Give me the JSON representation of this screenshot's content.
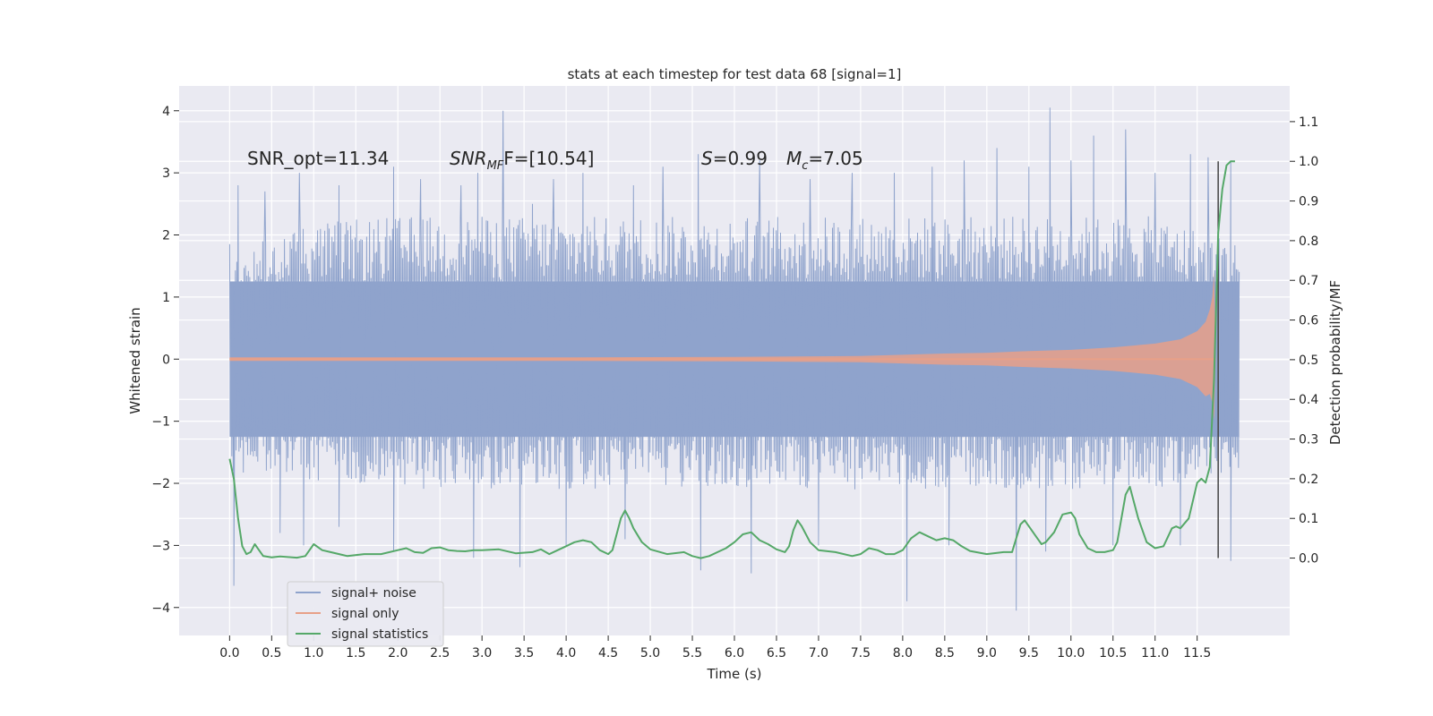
{
  "chart_data": {
    "type": "line",
    "title": "stats at each timestep for test data 68 [signal=1]",
    "xlabel": "Time (s)",
    "ylabel": "Whitened strain",
    "y2label": "Detection probability/MF",
    "xlim": [
      -0.6,
      12.6
    ],
    "ylim": [
      -4.45,
      4.4
    ],
    "y2lim": [
      -0.195,
      1.19
    ],
    "xticks": [
      0.0,
      0.5,
      1.0,
      1.5,
      2.0,
      2.5,
      3.0,
      3.5,
      4.0,
      4.5,
      5.0,
      5.5,
      6.0,
      6.5,
      7.0,
      7.5,
      8.0,
      8.5,
      9.0,
      9.5,
      10.0,
      10.5,
      11.0,
      11.5
    ],
    "xtick_labels": [
      "0.0",
      "0.5",
      "1.0",
      "1.5",
      "2.0",
      "2.5",
      "3.0",
      "3.5",
      "4.0",
      "4.5",
      "5.0",
      "5.5",
      "6.0",
      "6.5",
      "7.0",
      "7.5",
      "8.0",
      "8.5",
      "9.0",
      "9.5",
      "10.0",
      "10.5",
      "11.0",
      "11.5"
    ],
    "yticks": [
      -4,
      -3,
      -2,
      -1,
      0,
      1,
      2,
      3,
      4
    ],
    "ytick_labels": [
      "−4",
      "−3",
      "−2",
      "−1",
      "0",
      "1",
      "2",
      "3",
      "4"
    ],
    "y2ticks": [
      0.0,
      0.1,
      0.2,
      0.3,
      0.4,
      0.5,
      0.6,
      0.7,
      0.8,
      0.9,
      1.0,
      1.1
    ],
    "y2tick_labels": [
      "0.0",
      "0.1",
      "0.2",
      "0.3",
      "0.4",
      "0.5",
      "0.6",
      "0.7",
      "0.8",
      "0.9",
      "1.0",
      "1.1"
    ],
    "grid": true,
    "legend_position": "lower-left",
    "annotations": {
      "snr_opt": "SNR_opt=11.34",
      "snr_mf_main": "SNR",
      "snr_mf_sub": "MF",
      "snr_mf_value": "F=[10.54]",
      "s_main": "S",
      "s_value": "=0.99",
      "mc_main": "M",
      "mc_sub": "c",
      "mc_value": "=7.05"
    },
    "series": [
      {
        "name": "signal+ noise",
        "color": "#8fa3cc",
        "axis": "left",
        "x_range": [
          0.0,
          12.0
        ],
        "description_of_envelope": [
          [
            0.0,
            1.9,
            -1.8
          ],
          [
            1.0,
            2.2,
            -2.0
          ],
          [
            2.0,
            2.3,
            -2.1
          ],
          [
            3.0,
            2.3,
            -2.1
          ],
          [
            4.0,
            2.3,
            -2.1
          ],
          [
            5.0,
            2.3,
            -2.1
          ],
          [
            6.0,
            2.3,
            -2.1
          ],
          [
            7.0,
            2.3,
            -2.1
          ],
          [
            8.0,
            2.3,
            -2.1
          ],
          [
            9.0,
            2.3,
            -2.1
          ],
          [
            10.0,
            2.3,
            -2.1
          ],
          [
            11.0,
            2.3,
            -2.1
          ],
          [
            12.0,
            1.9,
            -1.8
          ]
        ],
        "peaks": [
          [
            0.1,
            2.8
          ],
          [
            0.42,
            2.7
          ],
          [
            0.83,
            3.0
          ],
          [
            1.3,
            2.8
          ],
          [
            1.95,
            3.1
          ],
          [
            2.27,
            2.9
          ],
          [
            2.75,
            2.8
          ],
          [
            2.95,
            3.0
          ],
          [
            3.25,
            4.0
          ],
          [
            3.6,
            2.5
          ],
          [
            3.85,
            2.9
          ],
          [
            4.2,
            3.0
          ],
          [
            4.8,
            2.8
          ],
          [
            5.15,
            3.1
          ],
          [
            5.57,
            3.3
          ],
          [
            6.3,
            3.2
          ],
          [
            6.9,
            2.9
          ],
          [
            7.4,
            3.0
          ],
          [
            7.9,
            3.0
          ],
          [
            8.35,
            3.1
          ],
          [
            8.73,
            3.2
          ],
          [
            9.12,
            3.4
          ],
          [
            9.5,
            3.1
          ],
          [
            9.75,
            4.05
          ],
          [
            10.0,
            3.2
          ],
          [
            10.27,
            3.6
          ],
          [
            10.65,
            3.7
          ],
          [
            11.0,
            3.0
          ],
          [
            11.42,
            3.3
          ],
          [
            11.63,
            3.25
          ],
          [
            11.9,
            3.2
          ]
        ],
        "troughs": [
          [
            0.05,
            -3.65
          ],
          [
            0.6,
            -2.8
          ],
          [
            0.88,
            -3.0
          ],
          [
            1.3,
            -2.7
          ],
          [
            1.95,
            -3.1
          ],
          [
            2.9,
            -3.2
          ],
          [
            3.45,
            -3.35
          ],
          [
            4.0,
            -3.0
          ],
          [
            4.7,
            -2.9
          ],
          [
            5.6,
            -3.4
          ],
          [
            6.2,
            -3.45
          ],
          [
            7.0,
            -3.0
          ],
          [
            8.05,
            -3.9
          ],
          [
            8.55,
            -3.0
          ],
          [
            9.35,
            -4.05
          ],
          [
            9.7,
            -3.1
          ],
          [
            10.5,
            -3.0
          ],
          [
            11.3,
            -3.0
          ],
          [
            11.9,
            -3.25
          ]
        ]
      },
      {
        "name": "signal only",
        "color": "#e8a088",
        "axis": "left",
        "amplitude_envelope": [
          [
            0.0,
            0.03
          ],
          [
            2.0,
            0.03
          ],
          [
            4.0,
            0.03
          ],
          [
            6.0,
            0.035
          ],
          [
            7.0,
            0.045
          ],
          [
            7.5,
            0.05
          ],
          [
            8.0,
            0.07
          ],
          [
            8.5,
            0.09
          ],
          [
            9.0,
            0.1
          ],
          [
            9.5,
            0.13
          ],
          [
            10.0,
            0.15
          ],
          [
            10.5,
            0.19
          ],
          [
            11.0,
            0.25
          ],
          [
            11.3,
            0.32
          ],
          [
            11.5,
            0.45
          ],
          [
            11.6,
            0.6
          ],
          [
            11.65,
            0.8
          ],
          [
            11.68,
            1.0
          ],
          [
            11.7,
            1.4
          ],
          [
            11.72,
            0.0
          ]
        ]
      },
      {
        "name": "signal statistics",
        "color": "#55a868",
        "axis": "right",
        "x": [
          0.0,
          0.05,
          0.1,
          0.15,
          0.2,
          0.25,
          0.3,
          0.35,
          0.4,
          0.5,
          0.6,
          0.8,
          0.9,
          1.0,
          1.1,
          1.2,
          1.4,
          1.6,
          1.8,
          2.0,
          2.1,
          2.2,
          2.3,
          2.4,
          2.5,
          2.6,
          2.7,
          2.8,
          2.9,
          3.0,
          3.2,
          3.4,
          3.6,
          3.7,
          3.8,
          3.9,
          4.0,
          4.1,
          4.2,
          4.3,
          4.4,
          4.5,
          4.55,
          4.6,
          4.65,
          4.7,
          4.75,
          4.8,
          4.9,
          5.0,
          5.2,
          5.4,
          5.5,
          5.6,
          5.7,
          5.8,
          5.9,
          6.0,
          6.1,
          6.2,
          6.3,
          6.4,
          6.5,
          6.6,
          6.65,
          6.7,
          6.75,
          6.8,
          6.9,
          7.0,
          7.2,
          7.4,
          7.5,
          7.6,
          7.7,
          7.8,
          7.9,
          8.0,
          8.1,
          8.2,
          8.3,
          8.4,
          8.5,
          8.6,
          8.7,
          8.8,
          9.0,
          9.2,
          9.3,
          9.35,
          9.4,
          9.45,
          9.5,
          9.6,
          9.65,
          9.7,
          9.8,
          9.9,
          10.0,
          10.05,
          10.1,
          10.2,
          10.3,
          10.4,
          10.5,
          10.55,
          10.6,
          10.65,
          10.7,
          10.75,
          10.8,
          10.9,
          11.0,
          11.1,
          11.2,
          11.25,
          11.3,
          11.4,
          11.5,
          11.55,
          11.6,
          11.65,
          11.7,
          11.75,
          11.8,
          11.85,
          11.9,
          11.95
        ],
        "values": [
          0.25,
          0.2,
          0.1,
          0.03,
          0.01,
          0.015,
          0.035,
          0.02,
          0.005,
          0.002,
          0.004,
          0.001,
          0.005,
          0.035,
          0.02,
          0.015,
          0.005,
          0.01,
          0.01,
          0.02,
          0.025,
          0.015,
          0.013,
          0.025,
          0.027,
          0.02,
          0.018,
          0.017,
          0.02,
          0.02,
          0.022,
          0.012,
          0.015,
          0.022,
          0.01,
          0.02,
          0.03,
          0.04,
          0.045,
          0.04,
          0.02,
          0.01,
          0.02,
          0.06,
          0.1,
          0.12,
          0.1,
          0.075,
          0.04,
          0.022,
          0.01,
          0.015,
          0.005,
          0.0,
          0.005,
          0.015,
          0.025,
          0.04,
          0.06,
          0.065,
          0.045,
          0.035,
          0.022,
          0.015,
          0.03,
          0.07,
          0.095,
          0.08,
          0.04,
          0.02,
          0.015,
          0.005,
          0.01,
          0.025,
          0.02,
          0.01,
          0.01,
          0.02,
          0.05,
          0.065,
          0.055,
          0.045,
          0.05,
          0.045,
          0.03,
          0.018,
          0.01,
          0.015,
          0.015,
          0.05,
          0.085,
          0.095,
          0.08,
          0.05,
          0.035,
          0.04,
          0.065,
          0.11,
          0.115,
          0.1,
          0.06,
          0.025,
          0.015,
          0.015,
          0.02,
          0.04,
          0.1,
          0.16,
          0.18,
          0.14,
          0.1,
          0.04,
          0.025,
          0.03,
          0.075,
          0.08,
          0.075,
          0.1,
          0.19,
          0.2,
          0.19,
          0.23,
          0.45,
          0.82,
          0.93,
          0.99,
          1.0,
          1.0
        ],
        "marker_line_x": 11.75
      }
    ]
  }
}
